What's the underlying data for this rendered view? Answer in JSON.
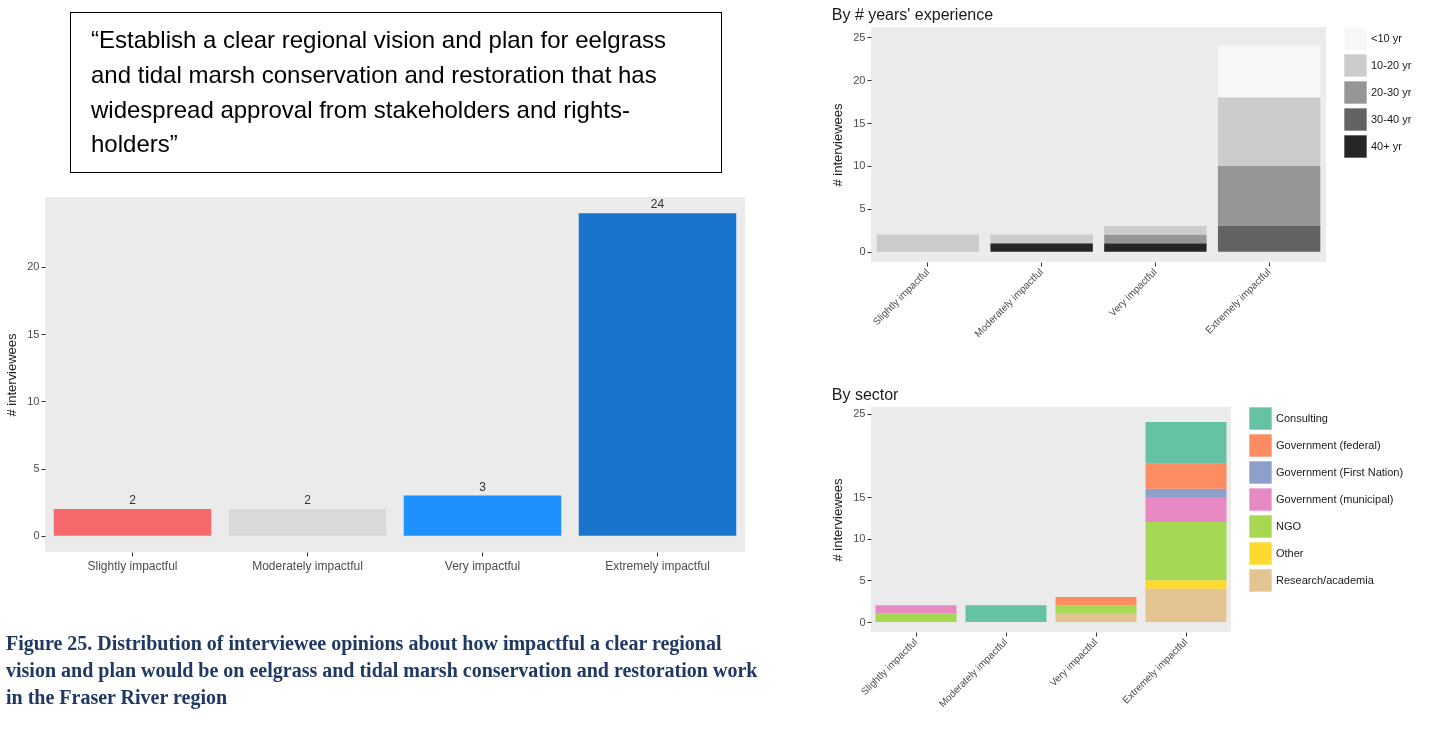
{
  "chart_data": [
    {
      "type": "bar",
      "ylabel": "# interviewees",
      "categories": [
        "Slightly impactful",
        "Moderately impactful",
        "Very impactful",
        "Extremely impactful"
      ],
      "values": [
        2,
        2,
        3,
        24
      ],
      "colors": [
        "#f8696b",
        "#d9d9d9",
        "#1e90ff",
        "#1874cd"
      ],
      "data_labels": true,
      "ylim": [
        -1.2,
        25.2
      ],
      "yticks": [
        0,
        5,
        10,
        15,
        20
      ],
      "annotations": [
        "“Establish a clear regional vision and plan for eelgrass and tidal marsh conservation and restoration that has widespread approval from stakeholders and rights-holders”",
        "Figure 25. Distribution of interviewee opinions about how impactful a clear regional vision and plan would be on eelgrass and tidal marsh conservation and restoration work in the Fraser River region"
      ]
    },
    {
      "type": "bar",
      "title": "By # years' experience",
      "ylabel": "# interviewees",
      "stacked": true,
      "legend": "right",
      "categories": [
        "Slightly impactful",
        "Moderately impactful",
        "Very impactful",
        "Extremely impactful"
      ],
      "ylim": [
        -1.2,
        26.2
      ],
      "yticks": [
        0,
        5,
        10,
        15,
        20,
        25
      ],
      "series": [
        {
          "name": "40+ yr",
          "color": "#262626",
          "values": [
            null,
            1,
            1,
            null
          ]
        },
        {
          "name": "30-40 yr",
          "color": "#636363",
          "values": [
            null,
            null,
            null,
            3
          ]
        },
        {
          "name": "20-30 yr",
          "color": "#969696",
          "values": [
            null,
            null,
            1,
            7
          ]
        },
        {
          "name": "10-20 yr",
          "color": "#cccccc",
          "values": [
            2,
            1,
            1,
            8
          ]
        },
        {
          "name": "<10 yr",
          "color": "#f7f7f7",
          "values": [
            null,
            null,
            null,
            6
          ]
        }
      ]
    },
    {
      "type": "bar",
      "title": "By sector",
      "ylabel": "# interviewees",
      "stacked": true,
      "legend": "right",
      "categories": [
        "Slightly impactful",
        "Moderately impactful",
        "Very impactful",
        "Extremely impactful"
      ],
      "ylim": [
        -1.2,
        25.8
      ],
      "yticks": [
        0,
        5,
        10,
        15,
        25
      ],
      "series": [
        {
          "name": "Research/academia",
          "color": "#e5c494",
          "values": [
            null,
            null,
            1,
            4
          ]
        },
        {
          "name": "Other",
          "color": "#ffd92f",
          "values": [
            null,
            null,
            null,
            1
          ]
        },
        {
          "name": "NGO",
          "color": "#a6d854",
          "values": [
            1,
            null,
            1,
            7
          ]
        },
        {
          "name": "Government (municipal)",
          "color": "#e78ac3",
          "values": [
            1,
            null,
            null,
            3
          ]
        },
        {
          "name": "Government (First Nation)",
          "color": "#8da0cb",
          "values": [
            null,
            null,
            null,
            1
          ]
        },
        {
          "name": "Government (federal)",
          "color": "#fc8d62",
          "values": [
            null,
            null,
            1,
            3
          ]
        },
        {
          "name": "Consulting",
          "color": "#66c2a5",
          "values": [
            null,
            2,
            null,
            5
          ]
        }
      ]
    }
  ]
}
